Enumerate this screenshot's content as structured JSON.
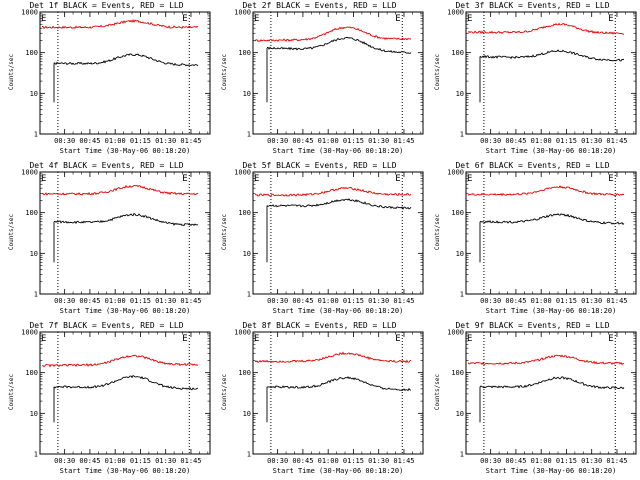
{
  "chart_data": [
    {
      "type": "line",
      "title": "Det 1f BLACK = Events, RED = LLD",
      "ylabel": "Counts/sec",
      "xlabel": "Start Time (30-May-06 00:18:20)",
      "x_ticks": [
        "00:30",
        "00:45",
        "01:00",
        "01:15",
        "01:30",
        "01:45"
      ],
      "y_ticks": [
        "1",
        "10",
        "100",
        "1000"
      ],
      "ylim": [
        1,
        1000
      ],
      "scale": "log",
      "markers": [
        "E",
        "E"
      ],
      "series": [
        {
          "name": "LLD",
          "color": "#e00000",
          "start": 420,
          "peak": 600,
          "end": 420
        },
        {
          "name": "Events",
          "color": "#000000",
          "start": 55,
          "peak": 90,
          "end": 50
        }
      ]
    },
    {
      "type": "line",
      "title": "Det 2f BLACK = Events, RED = LLD",
      "ylabel": "Counts/sec",
      "xlabel": "Start Time (30-May-06 00:18:20)",
      "x_ticks": [
        "00:30",
        "00:45",
        "01:00",
        "01:15",
        "01:30",
        "01:45"
      ],
      "y_ticks": [
        "1",
        "10",
        "100",
        "1000"
      ],
      "ylim": [
        1,
        1000
      ],
      "scale": "log",
      "markers": [
        "E",
        "E"
      ],
      "series": [
        {
          "name": "LLD",
          "color": "#e00000",
          "start": 200,
          "peak": 420,
          "end": 220
        },
        {
          "name": "Events",
          "color": "#000000",
          "start": 130,
          "peak": 230,
          "end": 100
        }
      ]
    },
    {
      "type": "line",
      "title": "Det 3f BLACK = Events, RED = LLD",
      "ylabel": "Counts/sec",
      "xlabel": "Start Time (30-May-06 00:18:20)",
      "x_ticks": [
        "00:30",
        "00:45",
        "01:00",
        "01:15",
        "01:30",
        "01:45"
      ],
      "y_ticks": [
        "1",
        "10",
        "100",
        "1000"
      ],
      "ylim": [
        1,
        1000
      ],
      "scale": "log",
      "markers": [
        "E",
        "E"
      ],
      "series": [
        {
          "name": "LLD",
          "color": "#e00000",
          "start": 320,
          "peak": 500,
          "end": 300
        },
        {
          "name": "Events",
          "color": "#000000",
          "start": 80,
          "peak": 110,
          "end": 65
        }
      ]
    },
    {
      "type": "line",
      "title": "Det 4f BLACK = Events, RED = LLD",
      "ylabel": "Counts/sec",
      "xlabel": "Start Time (30-May-06 00:18:20)",
      "x_ticks": [
        "00:30",
        "00:45",
        "01:00",
        "01:15",
        "01:30",
        "01:45"
      ],
      "y_ticks": [
        "1",
        "10",
        "100",
        "1000"
      ],
      "ylim": [
        1,
        1000
      ],
      "scale": "log",
      "markers": [
        "E",
        "E"
      ],
      "series": [
        {
          "name": "LLD",
          "color": "#e00000",
          "start": 290,
          "peak": 450,
          "end": 290
        },
        {
          "name": "Events",
          "color": "#000000",
          "start": 60,
          "peak": 90,
          "end": 50
        }
      ]
    },
    {
      "type": "line",
      "title": "Det 5f BLACK = Events, RED = LLD",
      "ylabel": "Counts/sec",
      "xlabel": "Start Time (30-May-06 00:18:20)",
      "x_ticks": [
        "00:30",
        "00:45",
        "01:00",
        "01:15",
        "01:30",
        "01:45"
      ],
      "y_ticks": [
        "1",
        "10",
        "100",
        "1000"
      ],
      "ylim": [
        1,
        1000
      ],
      "scale": "log",
      "markers": [
        "E",
        "E"
      ],
      "series": [
        {
          "name": "LLD",
          "color": "#e00000",
          "start": 270,
          "peak": 400,
          "end": 280
        },
        {
          "name": "Events",
          "color": "#000000",
          "start": 150,
          "peak": 210,
          "end": 130
        }
      ]
    },
    {
      "type": "line",
      "title": "Det 6f BLACK = Events, RED = LLD",
      "ylabel": "Counts/sec",
      "xlabel": "Start Time (30-May-06 00:18:20)",
      "x_ticks": [
        "00:30",
        "00:45",
        "01:00",
        "01:15",
        "01:30",
        "01:45"
      ],
      "y_ticks": [
        "1",
        "10",
        "100",
        "1000"
      ],
      "ylim": [
        1,
        1000
      ],
      "scale": "log",
      "markers": [
        "E",
        "E"
      ],
      "series": [
        {
          "name": "LLD",
          "color": "#e00000",
          "start": 280,
          "peak": 430,
          "end": 280
        },
        {
          "name": "Events",
          "color": "#000000",
          "start": 60,
          "peak": 90,
          "end": 55
        }
      ]
    },
    {
      "type": "line",
      "title": "Det 7f BLACK = Events, RED = LLD",
      "ylabel": "Counts/sec",
      "xlabel": "Start Time (30-May-06 00:18:20)",
      "x_ticks": [
        "00:30",
        "00:45",
        "01:00",
        "01:15",
        "01:30",
        "01:45"
      ],
      "y_ticks": [
        "1",
        "10",
        "100",
        "1000"
      ],
      "ylim": [
        1,
        1000
      ],
      "scale": "log",
      "markers": [
        "E",
        "E"
      ],
      "series": [
        {
          "name": "LLD",
          "color": "#e00000",
          "start": 150,
          "peak": 260,
          "end": 160
        },
        {
          "name": "Events",
          "color": "#000000",
          "start": 45,
          "peak": 80,
          "end": 40
        }
      ]
    },
    {
      "type": "line",
      "title": "Det 8f BLACK = Events, RED = LLD",
      "ylabel": "Counts/sec",
      "xlabel": "Start Time (30-May-06 00:18:20)",
      "x_ticks": [
        "00:30",
        "00:45",
        "01:00",
        "01:15",
        "01:30",
        "01:45"
      ],
      "y_ticks": [
        "1",
        "10",
        "100",
        "1000"
      ],
      "ylim": [
        1,
        1000
      ],
      "scale": "log",
      "markers": [
        "E",
        "E"
      ],
      "series": [
        {
          "name": "LLD",
          "color": "#e00000",
          "start": 190,
          "peak": 300,
          "end": 190
        },
        {
          "name": "Events",
          "color": "#000000",
          "start": 45,
          "peak": 75,
          "end": 38
        }
      ]
    },
    {
      "type": "line",
      "title": "Det 9f BLACK = Events, RED = LLD",
      "ylabel": "Counts/sec",
      "xlabel": "Start Time (30-May-06 00:18:20)",
      "x_ticks": [
        "00:30",
        "00:45",
        "01:00",
        "01:15",
        "01:30",
        "01:45"
      ],
      "y_ticks": [
        "1",
        "10",
        "100",
        "1000"
      ],
      "ylim": [
        1,
        1000
      ],
      "scale": "log",
      "markers": [
        "E",
        "E"
      ],
      "series": [
        {
          "name": "LLD",
          "color": "#e00000",
          "start": 170,
          "peak": 260,
          "end": 170
        },
        {
          "name": "Events",
          "color": "#000000",
          "start": 45,
          "peak": 75,
          "end": 42
        }
      ]
    }
  ]
}
